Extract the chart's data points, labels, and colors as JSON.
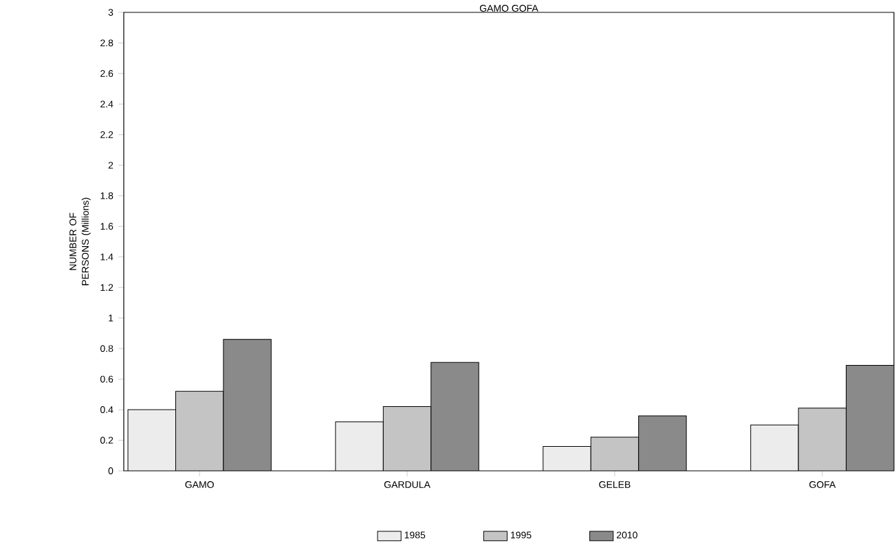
{
  "chart_data": {
    "type": "bar",
    "title": "GAMO GOFA",
    "ylabel": "NUMBER OF PERSONS (Millions)",
    "categories": [
      "GAMO",
      "GARDULA",
      "GELEB",
      "GOFA"
    ],
    "series": [
      {
        "name": "1985",
        "color": "#ececec",
        "values": [
          0.4,
          0.32,
          0.16,
          0.3
        ]
      },
      {
        "name": "1995",
        "color": "#c4c4c4",
        "values": [
          0.52,
          0.42,
          0.22,
          0.41
        ]
      },
      {
        "name": "2010",
        "color": "#8a8a8a",
        "values": [
          0.86,
          0.71,
          0.36,
          0.69
        ]
      }
    ],
    "ylim": [
      0,
      3
    ],
    "yticks": [
      0,
      0.2,
      0.4,
      0.6,
      0.8,
      1,
      1.2,
      1.4,
      1.6,
      1.8,
      2,
      2.2,
      2.4,
      2.6,
      2.8,
      3
    ],
    "legend": "bottom"
  }
}
